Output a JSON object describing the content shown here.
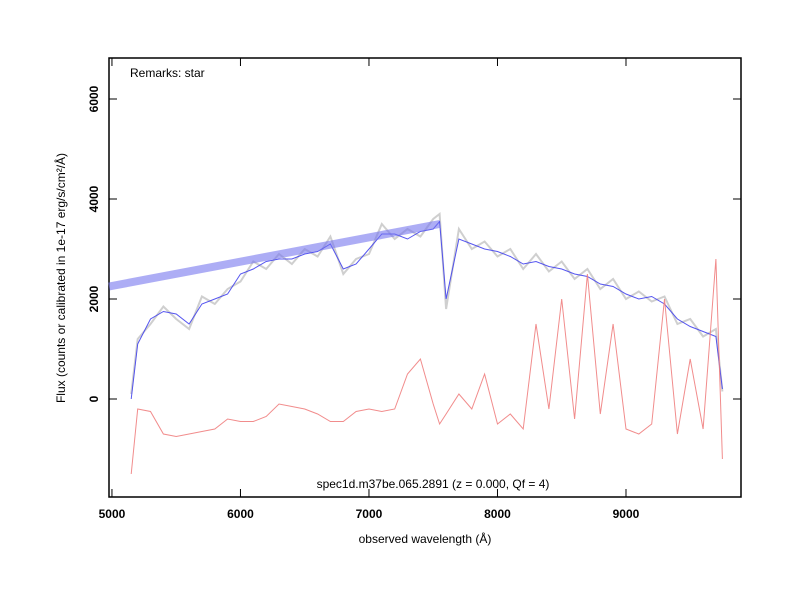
{
  "chart_data": {
    "type": "line",
    "xlabel": "observed wavelength (Å)",
    "ylabel": "Flux (counts or calibrated in 1e-17 erg/s/cm²/Å)",
    "annotations": [
      "Remarks: star",
      "spec1d.m37be.065.2891 (z = 0.000, Qf = 4)"
    ],
    "xlim": [
      4977,
      9895
    ],
    "ylim": [
      -1960,
      6820
    ],
    "xticks": [
      5000,
      6000,
      7000,
      8000,
      9000
    ],
    "yticks": [
      0,
      2000,
      4000,
      6000
    ],
    "x": [
      5150,
      5200,
      5300,
      5400,
      5500,
      5600,
      5700,
      5800,
      5900,
      6000,
      6100,
      6200,
      6300,
      6400,
      6500,
      6600,
      6700,
      6800,
      6900,
      7000,
      7100,
      7200,
      7300,
      7400,
      7500,
      7550,
      7600,
      7700,
      7800,
      7900,
      8000,
      8100,
      8200,
      8300,
      8400,
      8500,
      8600,
      8700,
      8800,
      8900,
      9000,
      9100,
      9200,
      9300,
      9400,
      9500,
      9600,
      9700,
      9750
    ],
    "series": [
      {
        "color": "#bbbbbb",
        "values": [
          100,
          1200,
          1500,
          1850,
          1600,
          1400,
          2050,
          1900,
          2200,
          2350,
          2750,
          2600,
          2900,
          2700,
          3000,
          2850,
          3250,
          2500,
          2800,
          2900,
          3500,
          3200,
          3400,
          3250,
          3600,
          3700,
          1800,
          3400,
          3000,
          3150,
          2850,
          3000,
          2600,
          2900,
          2550,
          2750,
          2400,
          2600,
          2200,
          2400,
          2000,
          2150,
          1950,
          2050,
          1500,
          1600,
          1250,
          1400,
          150
        ]
      },
      {
        "color": "#4444ee",
        "values": [
          0,
          1100,
          1600,
          1750,
          1700,
          1500,
          1900,
          2000,
          2100,
          2500,
          2600,
          2750,
          2800,
          2800,
          2900,
          2950,
          3100,
          2600,
          2700,
          3000,
          3300,
          3300,
          3200,
          3350,
          3400,
          3550,
          2000,
          3200,
          3100,
          3000,
          2950,
          2850,
          2700,
          2750,
          2650,
          2600,
          2500,
          2450,
          2300,
          2250,
          2100,
          2000,
          2050,
          1900,
          1600,
          1450,
          1350,
          1250,
          200
        ]
      },
      {
        "color": "#f08080",
        "values": [
          -1500,
          -200,
          -250,
          -700,
          -750,
          -700,
          -650,
          -600,
          -400,
          -450,
          -450,
          -350,
          -100,
          -150,
          -200,
          -300,
          -450,
          -450,
          -250,
          -200,
          -250,
          -200,
          500,
          800,
          -100,
          -500,
          -300,
          100,
          -200,
          500,
          -500,
          -300,
          -600,
          1500,
          -200,
          2000,
          -400,
          2500,
          -300,
          1500,
          -600,
          -700,
          -500,
          2000,
          -700,
          800,
          -600,
          2800,
          -1200
        ]
      },
      {
        "color": "#7777ee",
        "x": [
          4977,
          7550
        ],
        "values": [
          2250,
          3500
        ]
      }
    ]
  }
}
